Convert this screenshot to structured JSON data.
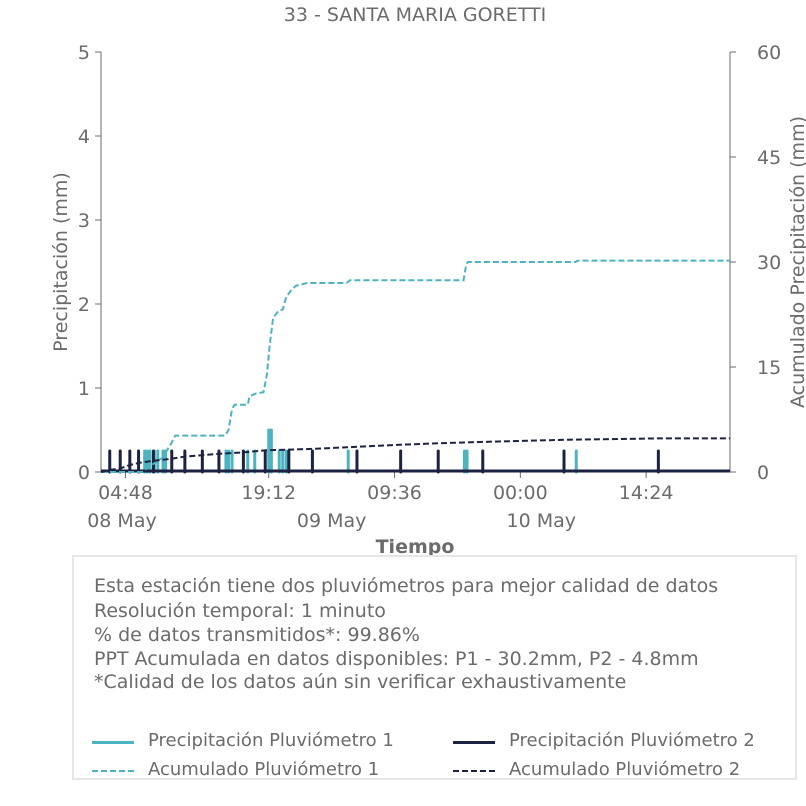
{
  "chart_data": {
    "type": "bar",
    "title": "33 - SANTA MARIA GORETTI",
    "xlabel": "Tiempo",
    "ylabel": "Precipitación (mm)",
    "ylabel_right": "Acumulado Precipitación (mm)",
    "ylim": [
      0,
      5
    ],
    "ylim_right": [
      0,
      60
    ],
    "yticks": [
      "0",
      "1",
      "2",
      "3",
      "4",
      "5"
    ],
    "yticks_right": [
      "0",
      "15",
      "30",
      "45",
      "60"
    ],
    "x_range_hours": [
      0,
      72
    ],
    "xticks": [
      {
        "h": 2.8,
        "label": "04:48"
      },
      {
        "h": 19.2,
        "label": "19:12"
      },
      {
        "h": 33.6,
        "label": "09:36"
      },
      {
        "h": 48.0,
        "label": "00:00"
      },
      {
        "h": 62.4,
        "label": "14:24"
      }
    ],
    "date_labels": [
      {
        "h": 2.4,
        "label": "08 May"
      },
      {
        "h": 26.4,
        "label": "09 May"
      },
      {
        "h": 50.4,
        "label": "10 May"
      }
    ],
    "grid": false,
    "series": [
      {
        "name": "Precipitación Pluviómetro 1",
        "color": "#4cb3c1",
        "kind": "bars",
        "points": [
          [
            5.0,
            0.25
          ],
          [
            5.3,
            0.25
          ],
          [
            5.6,
            0.25
          ],
          [
            6.1,
            0.25
          ],
          [
            6.5,
            0.25
          ],
          [
            7.1,
            0.25
          ],
          [
            7.4,
            0.25
          ],
          [
            14.3,
            0.25
          ],
          [
            14.6,
            0.25
          ],
          [
            15.0,
            0.25
          ],
          [
            16.8,
            0.25
          ],
          [
            17.6,
            0.25
          ],
          [
            19.2,
            0.5
          ],
          [
            19.5,
            0.5
          ],
          [
            20.4,
            0.25
          ],
          [
            20.8,
            0.25
          ],
          [
            21.2,
            0.25
          ],
          [
            28.3,
            0.25
          ],
          [
            41.6,
            0.25
          ],
          [
            41.9,
            0.25
          ],
          [
            54.4,
            0.25
          ]
        ]
      },
      {
        "name": "Precipitación Pluviómetro 2",
        "color": "#1c2241",
        "kind": "bars",
        "points": [
          [
            1.0,
            0.25
          ],
          [
            2.2,
            0.25
          ],
          [
            3.3,
            0.25
          ],
          [
            4.3,
            0.25
          ],
          [
            6.0,
            0.25
          ],
          [
            8.1,
            0.25
          ],
          [
            9.6,
            0.25
          ],
          [
            11.6,
            0.25
          ],
          [
            13.5,
            0.25
          ],
          [
            16.3,
            0.25
          ],
          [
            18.8,
            0.25
          ],
          [
            21.5,
            0.25
          ],
          [
            24.2,
            0.25
          ],
          [
            29.3,
            0.25
          ],
          [
            34.3,
            0.25
          ],
          [
            38.6,
            0.25
          ],
          [
            43.7,
            0.25
          ],
          [
            53.0,
            0.25
          ],
          [
            63.8,
            0.25
          ]
        ]
      },
      {
        "name": "Acumulado Pluviómetro 1",
        "color": "#4cb3c1",
        "kind": "cumulative",
        "points": [
          [
            0,
            0
          ],
          [
            4.8,
            0
          ],
          [
            5.0,
            0.3
          ],
          [
            5.5,
            0.8
          ],
          [
            6.2,
            1.3
          ],
          [
            7.2,
            2.2
          ],
          [
            7.5,
            3.0
          ],
          [
            8.0,
            4.0
          ],
          [
            8.5,
            5.2
          ],
          [
            14.2,
            5.2
          ],
          [
            14.6,
            6.0
          ],
          [
            15.0,
            9.0
          ],
          [
            15.3,
            9.6
          ],
          [
            16.8,
            9.6
          ],
          [
            17.0,
            10.8
          ],
          [
            17.7,
            11.2
          ],
          [
            18.6,
            11.4
          ],
          [
            19.0,
            14.0
          ],
          [
            19.3,
            18.0
          ],
          [
            19.7,
            22.0
          ],
          [
            20.3,
            23.0
          ],
          [
            20.8,
            23.2
          ],
          [
            21.2,
            25.0
          ],
          [
            21.8,
            26.0
          ],
          [
            22.3,
            26.6
          ],
          [
            23.6,
            27.0
          ],
          [
            28.1,
            27.0
          ],
          [
            28.5,
            27.4
          ],
          [
            41.5,
            27.4
          ],
          [
            41.8,
            29.6
          ],
          [
            42.0,
            30.0
          ],
          [
            54.3,
            30.0
          ],
          [
            54.6,
            30.2
          ],
          [
            72,
            30.2
          ]
        ]
      },
      {
        "name": "Acumulado Pluviómetro 2",
        "color": "#1c2241",
        "kind": "cumulative",
        "points": [
          [
            0,
            0
          ],
          [
            1.0,
            0.3
          ],
          [
            2.2,
            0.5
          ],
          [
            3.3,
            1.0
          ],
          [
            4.3,
            1.3
          ],
          [
            6.0,
            1.6
          ],
          [
            8.1,
            1.9
          ],
          [
            9.6,
            2.2
          ],
          [
            11.6,
            2.4
          ],
          [
            13.5,
            2.6
          ],
          [
            16.3,
            2.8
          ],
          [
            18.8,
            3.1
          ],
          [
            21.5,
            3.2
          ],
          [
            24.2,
            3.3
          ],
          [
            29.3,
            3.6
          ],
          [
            34.3,
            3.9
          ],
          [
            38.6,
            4.1
          ],
          [
            43.7,
            4.3
          ],
          [
            53.0,
            4.6
          ],
          [
            63.8,
            4.8
          ],
          [
            72,
            4.8
          ]
        ]
      }
    ]
  },
  "info": {
    "line1": "Esta estación tiene dos pluviómetros para mejor calidad de datos",
    "line2": "Resolución temporal: 1 minuto",
    "line3": "% de datos transmitidos*: 99.86%",
    "line4": "PPT Acumulada en datos disponibles: P1 - 30.2mm, P2 - 4.8mm",
    "line5": "*Calidad de los datos aún sin verificar exhaustivamente"
  },
  "legend": {
    "p1": "Precipitación Pluviómetro 1",
    "p2": "Precipitación Pluviómetro 2",
    "a1": "Acumulado Pluviómetro 1",
    "a2": "Acumulado Pluviómetro 2"
  },
  "colors": {
    "p1": "#4cb3c1",
    "p2": "#1c2241",
    "text": "#6b6b6b",
    "axis": "#6b6b6b"
  }
}
